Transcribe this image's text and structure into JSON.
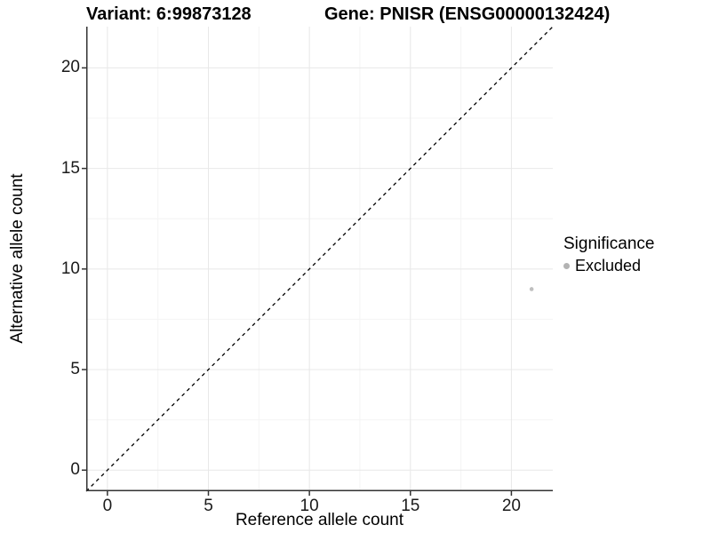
{
  "titles": {
    "variant": "Variant: 6:99873128",
    "gene": "Gene: PNISR (ENSG00000132424)"
  },
  "chart_data": {
    "type": "scatter",
    "title_left": "Variant: 6:99873128",
    "title_right": "Gene: PNISR (ENSG00000132424)",
    "xlabel": "Reference allele count",
    "ylabel": "Alternative allele count",
    "xlim": [
      -1.05,
      22.05
    ],
    "ylim": [
      -1.05,
      22.05
    ],
    "x_ticks": [
      0,
      5,
      10,
      15,
      20
    ],
    "y_ticks": [
      0,
      5,
      10,
      15,
      20
    ],
    "x_minor_ticks": [
      2.5,
      7.5,
      12.5,
      17.5
    ],
    "y_minor_ticks": [
      2.5,
      7.5,
      12.5,
      17.5
    ],
    "grid": true,
    "series": [
      {
        "name": "Excluded",
        "color": "#bfbfbf",
        "points": [
          {
            "x": 21,
            "y": 9
          }
        ]
      }
    ],
    "reference_line": {
      "type": "abline",
      "intercept": 0,
      "slope": 1,
      "style": "dashed",
      "color": "#000000"
    },
    "legend": {
      "title": "Significance",
      "position": "right",
      "entries": [
        {
          "label": "Excluded",
          "color": "#b3b3b3"
        }
      ]
    },
    "colors": {
      "axis_line": "#333333",
      "tick_label": "#1a1a1a",
      "grid_major": "#e8e8e8",
      "grid_minor": "#f4f4f4",
      "background": "#ffffff"
    }
  }
}
